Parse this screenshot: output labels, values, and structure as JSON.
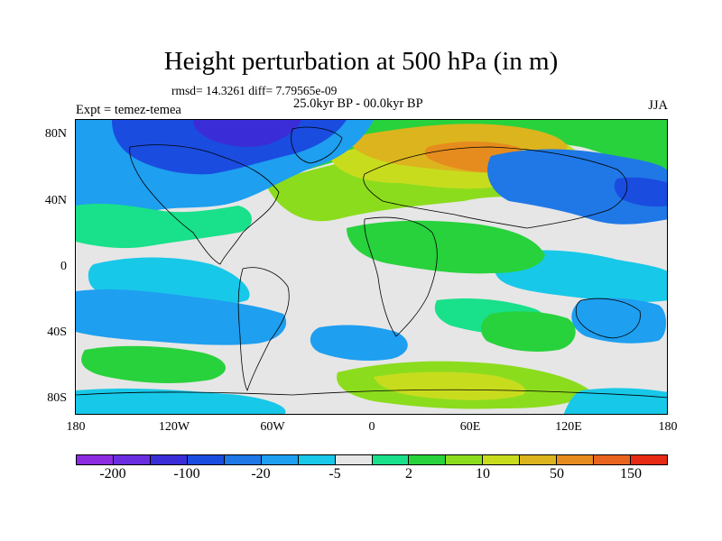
{
  "title": "Height perturbation at 500 hPa (in m)",
  "stats": "rmsd= 14.3261 diff= 7.79565e-09",
  "period": "25.0kyr BP - 00.0kyr BP",
  "experiment": "Expt = temez-temea",
  "season": "JJA",
  "map": {
    "lat_labels": [
      "80N",
      "40N",
      "0",
      "40S",
      "80S"
    ],
    "lon_labels": [
      "180",
      "120W",
      "60W",
      "0",
      "60E",
      "120E",
      "180"
    ]
  },
  "colorbar": {
    "colors": [
      "#8c2ce0",
      "#6a2ee0",
      "#3a2dd8",
      "#1a4ce0",
      "#1f78e6",
      "#1e9ff0",
      "#18c8e8",
      "#e6e6e6",
      "#19e08a",
      "#28d23c",
      "#8cdc1e",
      "#c8dc1e",
      "#dcb41e",
      "#e68c1e",
      "#e8641e",
      "#e62a14"
    ],
    "labels": [
      "-200",
      "-100",
      "-20",
      "-5",
      "2",
      "10",
      "50",
      "150"
    ]
  }
}
